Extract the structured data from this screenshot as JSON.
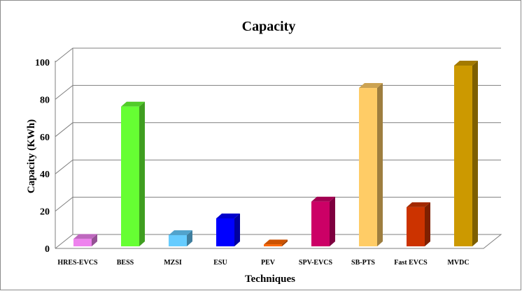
{
  "chart_data": {
    "type": "bar",
    "title": "Capacity",
    "xlabel": "Techniques",
    "ylabel": "Capacity  (KWh)",
    "ylim": [
      0,
      100
    ],
    "yticks": [
      0,
      20,
      40,
      60,
      80,
      100
    ],
    "grid": true,
    "legend": "none",
    "categories": [
      "HRES-EVCS",
      "BESS",
      "MZSI",
      "ESU",
      "PEV",
      "SPV-EVCS",
      "SB-PTS",
      "Fast EVCS",
      "MVDC"
    ],
    "values": [
      4,
      75,
      6,
      15,
      1,
      24,
      85,
      21,
      97
    ],
    "colors": [
      "#ee82ee",
      "#66ff33",
      "#66ccff",
      "#0000ff",
      "#ff6600",
      "#cc0066",
      "#ffcc66",
      "#cc3300",
      "#cc9900"
    ]
  }
}
